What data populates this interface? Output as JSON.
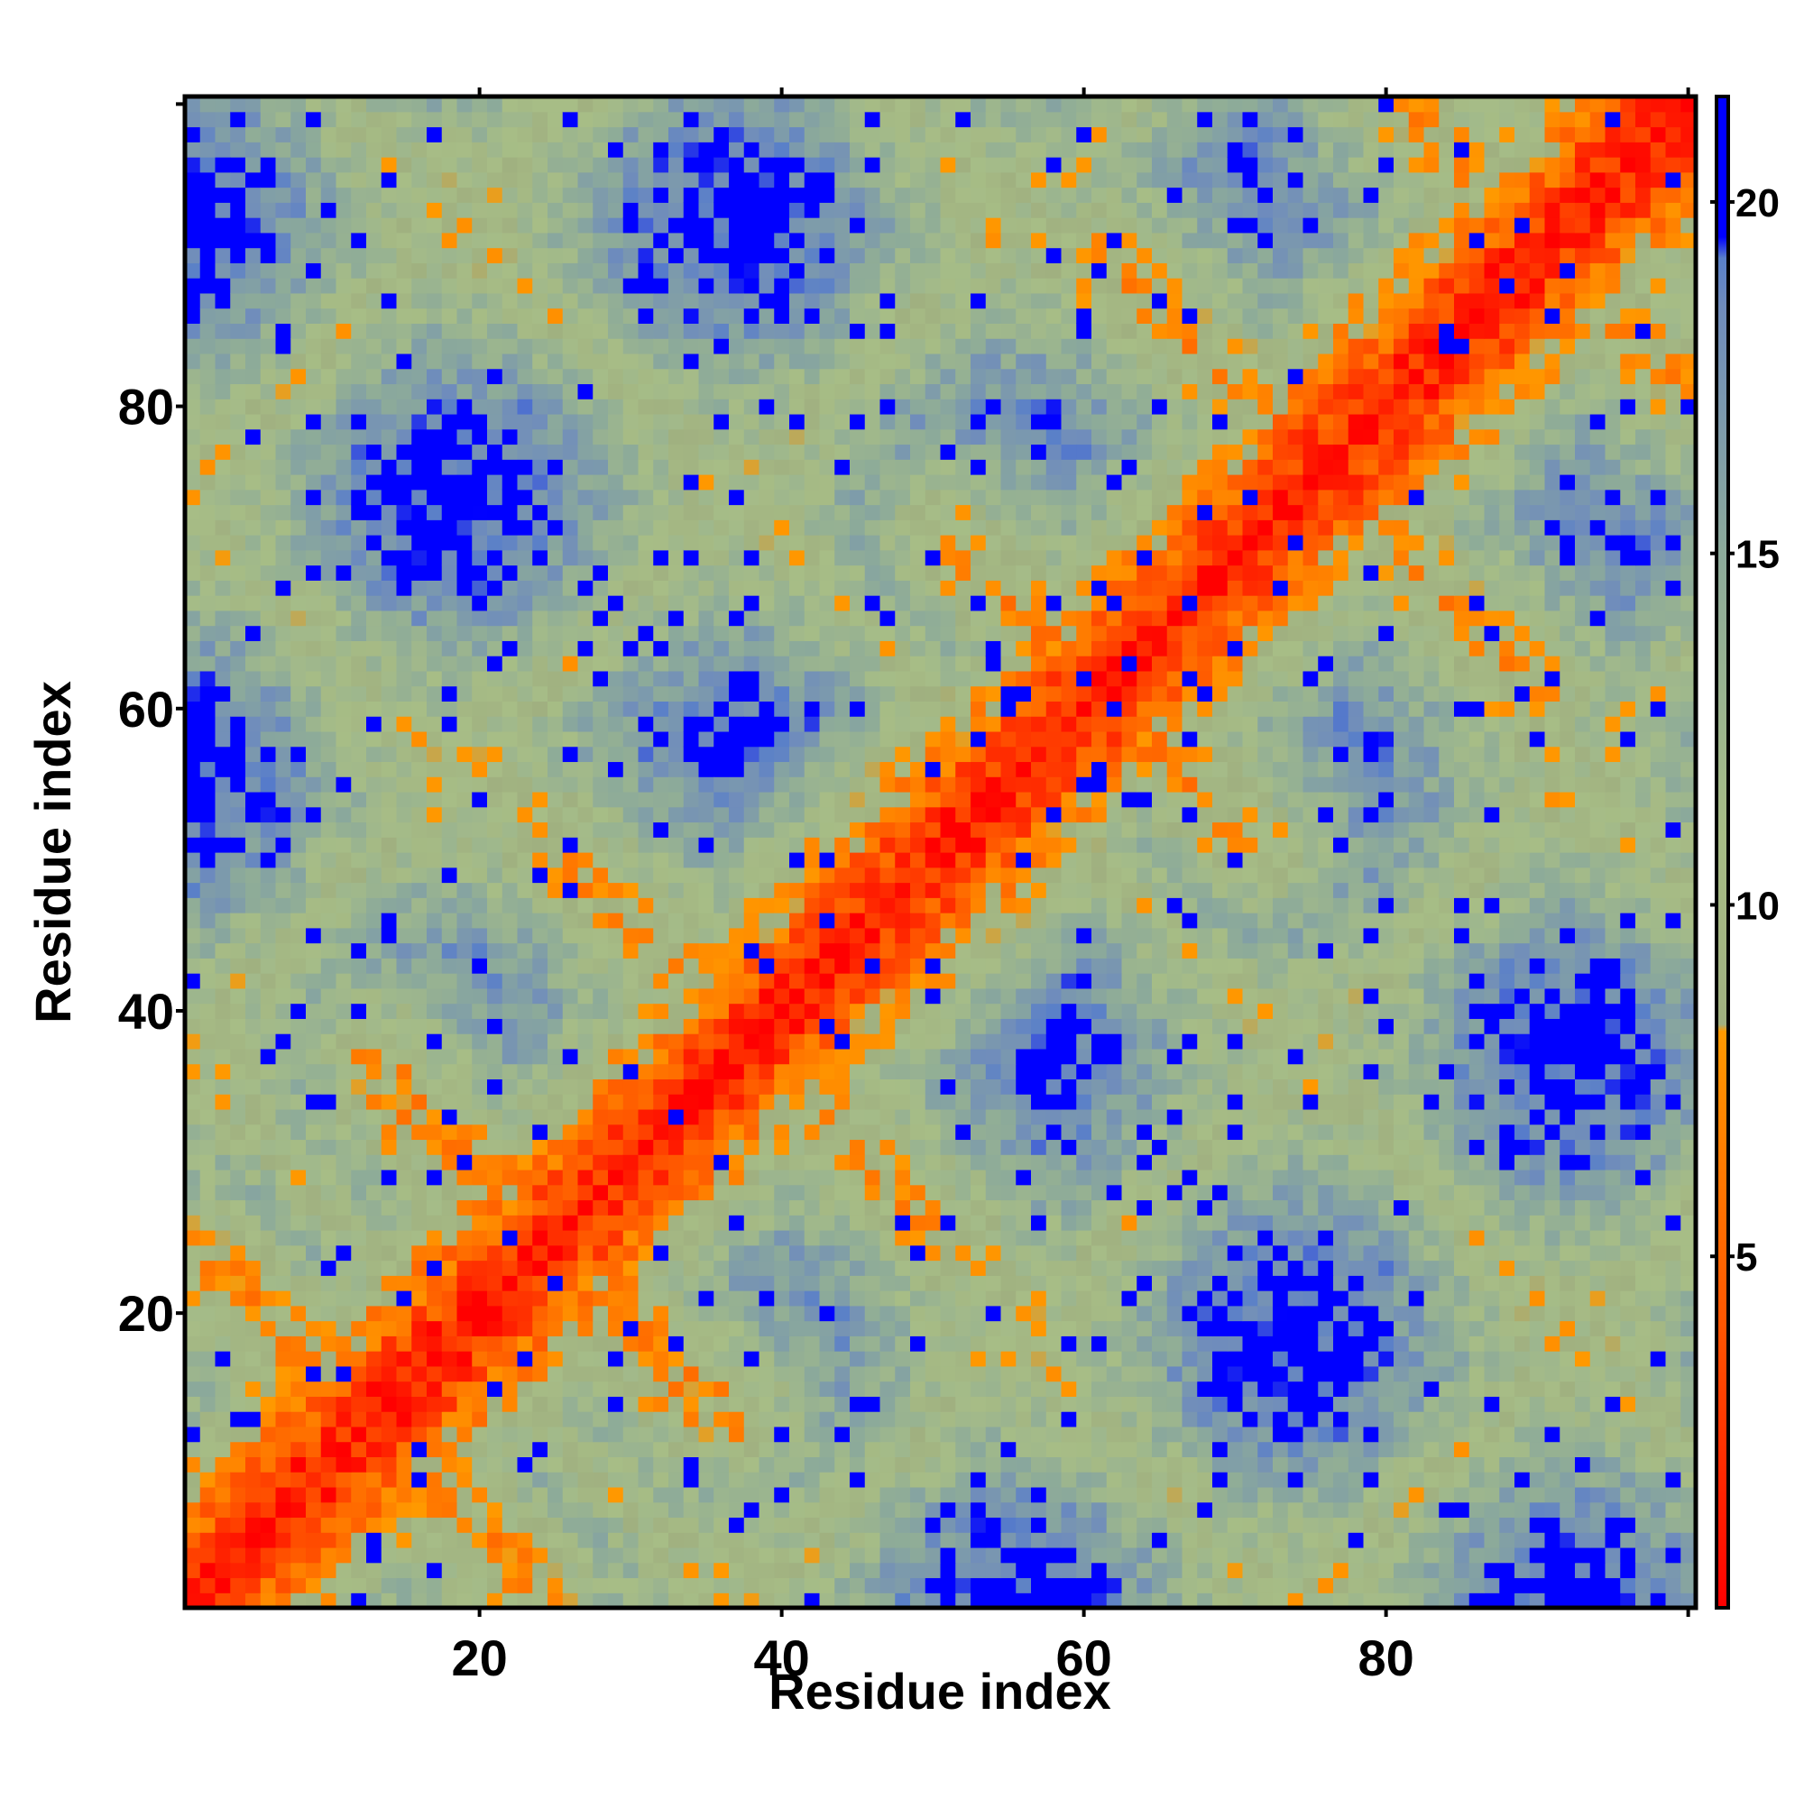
{
  "chart_data": {
    "type": "heatmap",
    "title": "",
    "xlabel": "Residue index",
    "ylabel": "Residue index",
    "n_residues": 100,
    "xlim": [
      1,
      100
    ],
    "ylim": [
      1,
      100
    ],
    "x_ticks": [
      20,
      40,
      60,
      80
    ],
    "y_ticks": [
      20,
      40,
      60,
      80
    ],
    "x_tick_labels": [
      "20",
      "40",
      "60",
      "80"
    ],
    "y_tick_labels": [
      "20",
      "40",
      "60",
      "80"
    ],
    "colorbar": {
      "ticks": [
        5,
        10,
        15,
        20
      ],
      "tick_labels": [
        "5",
        "10",
        "15",
        "20"
      ],
      "range": [
        0,
        21.5
      ],
      "stops": [
        {
          "value": 0,
          "color": "#ff0000"
        },
        {
          "value": 4,
          "color": "#ff5500"
        },
        {
          "value": 8.2,
          "color": "#ff9900"
        },
        {
          "value": 8.3,
          "color": "#a0b080"
        },
        {
          "value": 11,
          "color": "#a7bd86"
        },
        {
          "value": 15,
          "color": "#8caa9a"
        },
        {
          "value": 18.5,
          "color": "#6f8cbc"
        },
        {
          "value": 19.2,
          "color": "#5a80c8"
        },
        {
          "value": 19.5,
          "color": "#0000ff"
        }
      ]
    },
    "matrix_description": "Symmetric residue-residue distance map; diagonal near 0 (red); off-diagonal close contacts (orange) along anti-diagonal strands at residues ~2-24 vs ~5-25, ~24-36 vs ~26-38, ~34-50 vs ~38-52, ~57-72 vs ~60-72, ~62-88 vs ~62-88, ~86-100 vs ~82-100; large distances (blue, >19.5) elsewhere",
    "contact_segments": [
      {
        "i0": 2,
        "j0": 23,
        "i1": 24,
        "j1": 2
      },
      {
        "i0": 13,
        "j0": 37,
        "i1": 35,
        "j1": 13
      },
      {
        "i0": 24,
        "j0": 52,
        "i1": 50,
        "j1": 26
      },
      {
        "i0": 51,
        "j0": 71,
        "i1": 71,
        "j1": 51
      },
      {
        "i0": 61,
        "j0": 90,
        "i1": 89,
        "j1": 62
      },
      {
        "i0": 81,
        "j0": 100,
        "i1": 100,
        "j1": 81
      }
    ]
  }
}
